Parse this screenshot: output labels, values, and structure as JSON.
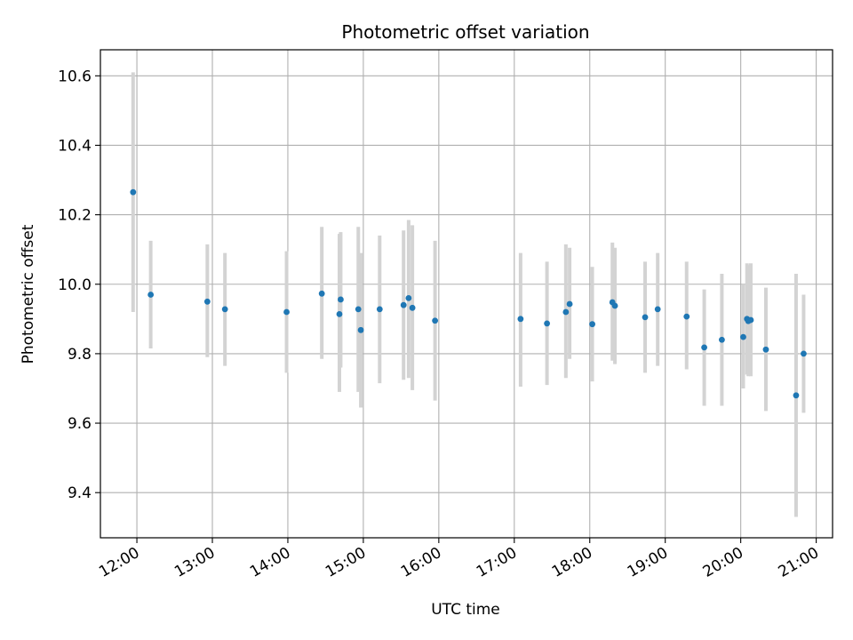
{
  "chart_data": {
    "type": "scatter",
    "title": "Photometric offset variation",
    "xlabel": "UTC time",
    "ylabel": "Photometric offset",
    "xlim": [
      "11:31",
      "21:13"
    ],
    "ylim": [
      9.27,
      10.675
    ],
    "x_ticks": [
      "12:00",
      "13:00",
      "14:00",
      "15:00",
      "16:00",
      "17:00",
      "18:00",
      "19:00",
      "20:00",
      "21:00"
    ],
    "y_ticks": [
      "9.4",
      "9.6",
      "9.8",
      "10.0",
      "10.2",
      "10.4",
      "10.6"
    ],
    "grid": true,
    "colors": {
      "point": "#1f77b4",
      "errorbar": "#d3d3d3",
      "grid": "#b0b0b0"
    },
    "series": [
      {
        "points": [
          {
            "x": "11:57",
            "y": 10.265,
            "ylow": 9.92,
            "yhigh": 10.61
          },
          {
            "x": "12:11",
            "y": 9.97,
            "ylow": 9.815,
            "yhigh": 10.125
          },
          {
            "x": "12:56",
            "y": 9.95,
            "ylow": 9.79,
            "yhigh": 10.115
          },
          {
            "x": "13:10",
            "y": 9.928,
            "ylow": 9.765,
            "yhigh": 10.09
          },
          {
            "x": "13:59",
            "y": 9.92,
            "ylow": 9.745,
            "yhigh": 10.095
          },
          {
            "x": "14:27",
            "y": 9.973,
            "ylow": 9.785,
            "yhigh": 10.165
          },
          {
            "x": "14:41",
            "y": 9.914,
            "ylow": 9.69,
            "yhigh": 10.145
          },
          {
            "x": "14:42",
            "y": 9.956,
            "ylow": 9.76,
            "yhigh": 10.15
          },
          {
            "x": "14:56",
            "y": 9.928,
            "ylow": 9.69,
            "yhigh": 10.165
          },
          {
            "x": "14:58",
            "y": 9.868,
            "ylow": 9.645,
            "yhigh": 10.09
          },
          {
            "x": "15:13",
            "y": 9.928,
            "ylow": 9.715,
            "yhigh": 10.14
          },
          {
            "x": "15:32",
            "y": 9.94,
            "ylow": 9.725,
            "yhigh": 10.155
          },
          {
            "x": "15:36",
            "y": 9.96,
            "ylow": 9.73,
            "yhigh": 10.185
          },
          {
            "x": "15:39",
            "y": 9.932,
            "ylow": 9.695,
            "yhigh": 10.17
          },
          {
            "x": "15:57",
            "y": 9.895,
            "ylow": 9.665,
            "yhigh": 10.125
          },
          {
            "x": "17:05",
            "y": 9.9,
            "ylow": 9.705,
            "yhigh": 10.09
          },
          {
            "x": "17:26",
            "y": 9.887,
            "ylow": 9.71,
            "yhigh": 10.065
          },
          {
            "x": "17:41",
            "y": 9.92,
            "ylow": 9.73,
            "yhigh": 10.115
          },
          {
            "x": "17:44",
            "y": 9.943,
            "ylow": 9.785,
            "yhigh": 10.105
          },
          {
            "x": "18:02",
            "y": 9.885,
            "ylow": 9.72,
            "yhigh": 10.05
          },
          {
            "x": "18:18",
            "y": 9.948,
            "ylow": 9.78,
            "yhigh": 10.12
          },
          {
            "x": "18:20",
            "y": 9.938,
            "ylow": 9.77,
            "yhigh": 10.105
          },
          {
            "x": "18:44",
            "y": 9.905,
            "ylow": 9.745,
            "yhigh": 10.065
          },
          {
            "x": "18:54",
            "y": 9.928,
            "ylow": 9.765,
            "yhigh": 10.09
          },
          {
            "x": "19:17",
            "y": 9.907,
            "ylow": 9.755,
            "yhigh": 10.065
          },
          {
            "x": "19:31",
            "y": 9.818,
            "ylow": 9.65,
            "yhigh": 9.985
          },
          {
            "x": "19:45",
            "y": 9.84,
            "ylow": 9.65,
            "yhigh": 10.03
          },
          {
            "x": "20:02",
            "y": 9.848,
            "ylow": 9.7,
            "yhigh": 10.0
          },
          {
            "x": "20:05",
            "y": 9.9,
            "ylow": 9.74,
            "yhigh": 10.06
          },
          {
            "x": "20:06",
            "y": 9.894,
            "ylow": 9.735,
            "yhigh": 10.055
          },
          {
            "x": "20:08",
            "y": 9.897,
            "ylow": 9.735,
            "yhigh": 10.06
          },
          {
            "x": "20:20",
            "y": 9.812,
            "ylow": 9.635,
            "yhigh": 9.99
          },
          {
            "x": "20:44",
            "y": 9.68,
            "ylow": 9.33,
            "yhigh": 10.03
          },
          {
            "x": "20:50",
            "y": 9.8,
            "ylow": 9.63,
            "yhigh": 9.97
          }
        ]
      }
    ]
  }
}
